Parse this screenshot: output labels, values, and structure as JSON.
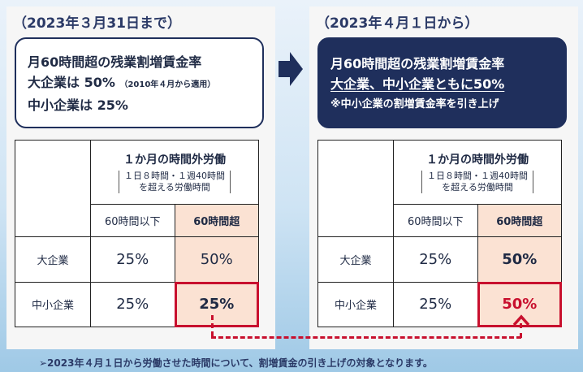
{
  "left": {
    "period": "（2023年３月31日まで）",
    "rule_line1": "月60時間超の残業割増賃金率",
    "rule_line2": "大企業は 50%",
    "rule_line2_note": "（2010年４月から適用）",
    "rule_line3": "中小企業は 25%",
    "table": {
      "header_title": "１か月の時間外労働",
      "header_sub1": "１日８時間・１週40時間",
      "header_sub2": "を超える労働時間",
      "col1": "60時間以下",
      "col2": "60時間超",
      "rows": [
        {
          "label": "大企業",
          "v1": "25%",
          "v2": "50%"
        },
        {
          "label": "中小企業",
          "v1": "25%",
          "v2": "25%"
        }
      ]
    }
  },
  "right": {
    "period": "（2023年４月１日から）",
    "rule_line1": "月60時間超の残業割増賃金率",
    "rule_line2": "大企業、中小企業ともに50%",
    "rule_line3": "※中小企業の割増賃金率を引き上げ",
    "table": {
      "header_title": "１か月の時間外労働",
      "header_sub1": "１日８時間・１週40時間",
      "header_sub2": "を超える労働時間",
      "col1": "60時間以下",
      "col2": "60時間超",
      "rows": [
        {
          "label": "大企業",
          "v1": "25%",
          "v2": "50%"
        },
        {
          "label": "中小企業",
          "v1": "25%",
          "v2": "50%"
        }
      ]
    }
  },
  "footer": "➢2023年４月１日から労働させた時間について、割増賃金の引き上げの対象となります。",
  "colors": {
    "navy": "#1f2f5c",
    "accent_red": "#c8102e",
    "highlight": "#fbe2d3"
  },
  "icons": [
    "arrow-right-icon",
    "arrow-up-icon"
  ]
}
